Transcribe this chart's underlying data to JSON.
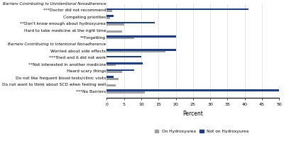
{
  "categories": [
    "Barriers Contributing to Unintentional Nonadherence",
    "***Doctor did not recommend",
    "Competing priorities",
    "**Don't know enough about hydroxyurea",
    "Hard to take medicine at the right time",
    "**Forgetting",
    "Barriers Contributing to Intentional Nonadherence",
    "Worried about side effects",
    "***Tried and it did not work",
    "**Not interested in another medicine",
    "Heard scary things",
    "Do not like frequent blood tests/clinic visits",
    "Do not want to think about SCD when feeling well",
    "***No Barriers"
  ],
  "on_hydroxyurea": [
    0,
    1.5,
    1.0,
    5.0,
    4.5,
    8.0,
    0,
    17.0,
    0,
    2.5,
    4.5,
    3.5,
    2.5,
    11.0
  ],
  "not_on_hydroxyurea": [
    0,
    41.0,
    2.0,
    14.0,
    0,
    20.0,
    0,
    20.0,
    10.0,
    10.5,
    8.0,
    2.0,
    0,
    50.0
  ],
  "on_color": "#a0a0a0",
  "not_color": "#1a3e8c",
  "header_rows": [
    0,
    6
  ],
  "xlim": [
    0,
    50
  ],
  "xticks": [
    0,
    5,
    10,
    15,
    20,
    25,
    30,
    35,
    40,
    45,
    50
  ],
  "xlabel": "Percent",
  "bar_height": 0.28,
  "legend_labels": [
    "On Hydroxyurea",
    "Not on Hydroxyurea"
  ],
  "on_legend_color": "#a0a0a0",
  "not_legend_color": "#1a3e8c",
  "fig_width": 4.0,
  "fig_height": 2.23,
  "dpi": 100
}
